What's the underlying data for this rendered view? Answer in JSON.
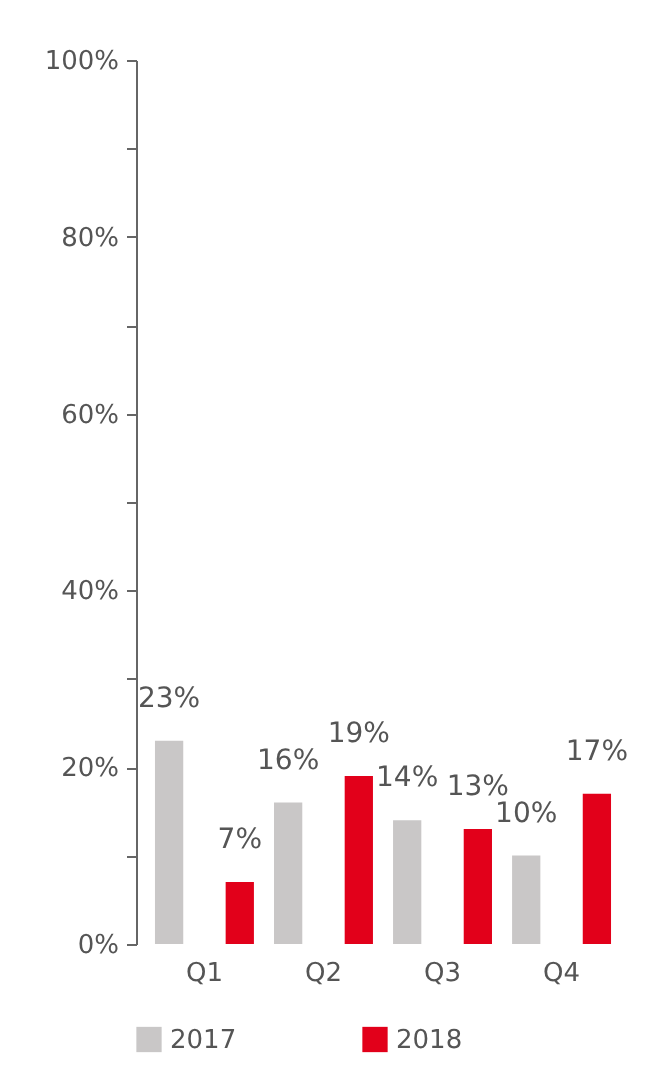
{
  "chart_data": {
    "type": "bar",
    "categories": [
      "Q1",
      "Q2",
      "Q3",
      "Q4"
    ],
    "series": [
      {
        "name": "2017",
        "color": "#c9c7c7",
        "values": [
          23,
          16,
          14,
          10
        ],
        "value_labels": [
          "23%",
          "16%",
          "14%",
          "10%"
        ]
      },
      {
        "name": "2018",
        "color": "#e2001a",
        "values": [
          7,
          19,
          13,
          17
        ],
        "value_labels": [
          "7%",
          "19%",
          "13%",
          "17%"
        ]
      }
    ],
    "ylim": [
      0,
      100
    ],
    "yticks": [
      {
        "value": 0,
        "label": "0%"
      },
      {
        "value": 10,
        "label": null
      },
      {
        "value": 20,
        "label": "20%"
      },
      {
        "value": 30,
        "label": null
      },
      {
        "value": 40,
        "label": "40%"
      },
      {
        "value": 50,
        "label": null
      },
      {
        "value": 60,
        "label": "60%"
      },
      {
        "value": 70,
        "label": null
      },
      {
        "value": 80,
        "label": "80%"
      },
      {
        "value": 90,
        "label": null
      },
      {
        "value": 100,
        "label": "100%"
      }
    ],
    "grid": false,
    "legend": "bottom"
  }
}
